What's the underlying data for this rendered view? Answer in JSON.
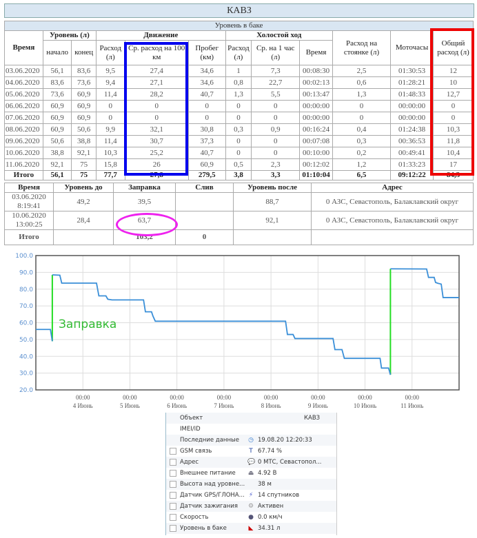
{
  "title": "КАВЗ",
  "table1": {
    "caption": "Уровень в баке",
    "headers": {
      "time": "Время",
      "level": "Уровень (л)",
      "start": "начало",
      "end": "конец",
      "movement": "Движение",
      "mv_cons": "Расход (л)",
      "mv_avg": "Ср. расход на 100 км",
      "mileage": "Пробег (км)",
      "idle": "Холостой ход",
      "idle_cons": "Расход (л)",
      "idle_avg": "Ср. на 1 час (л)",
      "idle_time": "Время",
      "parking": "Расход на стоянке (л)",
      "engine_hours": "Моточасы",
      "total": "Общий расход (л)"
    },
    "rows": [
      [
        "03.06.2020",
        "56,1",
        "83,6",
        "9,5",
        "27,4",
        "34,6",
        "1",
        "7,3",
        "00:08:30",
        "2,5",
        "01:30:53",
        "12"
      ],
      [
        "04.06.2020",
        "83,6",
        "73,6",
        "9,4",
        "27,1",
        "34,6",
        "0,8",
        "22,7",
        "00:02:13",
        "0,6",
        "01:28:21",
        "10"
      ],
      [
        "05.06.2020",
        "73,6",
        "60,9",
        "11,4",
        "28,2",
        "40,7",
        "1,3",
        "5,5",
        "00:13:47",
        "1,3",
        "01:48:33",
        "12,7"
      ],
      [
        "06.06.2020",
        "60,9",
        "60,9",
        "0",
        "0",
        "0",
        "0",
        "0",
        "00:00:00",
        "0",
        "00:00:00",
        "0"
      ],
      [
        "07.06.2020",
        "60,9",
        "60,9",
        "0",
        "0",
        "0",
        "0",
        "0",
        "00:00:00",
        "0",
        "00:00:00",
        "0"
      ],
      [
        "08.06.2020",
        "60,9",
        "50,6",
        "9,9",
        "32,1",
        "30,8",
        "0,3",
        "0,9",
        "00:16:24",
        "0,4",
        "01:24:38",
        "10,3"
      ],
      [
        "09.06.2020",
        "50,6",
        "38,8",
        "11,4",
        "30,7",
        "37,3",
        "0",
        "0",
        "00:07:08",
        "0,3",
        "00:36:53",
        "11,8"
      ],
      [
        "10.06.2020",
        "38,8",
        "92,1",
        "10,3",
        "25,2",
        "40,7",
        "0",
        "0",
        "00:10:00",
        "0,2",
        "00:49:41",
        "10,4"
      ],
      [
        "11.06.2020",
        "92,1",
        "75",
        "15,8",
        "26",
        "60,9",
        "0,5",
        "2,3",
        "00:12:02",
        "1,2",
        "01:33:23",
        "17"
      ]
    ],
    "total": [
      "Итого",
      "56,1",
      "75",
      "77,7",
      "27,8",
      "279,5",
      "3,8",
      "3,3",
      "01:10:04",
      "6,5",
      "09:12:22",
      "84,3"
    ]
  },
  "table2": {
    "headers": [
      "Время",
      "Уровень до",
      "Заправка",
      "Слив",
      "Уровень после",
      "Адрес"
    ],
    "rows": [
      {
        "date": "03.06.2020",
        "time": "8:19:41",
        "before": "49,2",
        "refuel": "39,5",
        "drain": "",
        "after": "88,7",
        "address": "0 АЗС, Севастополь, Балаклавский округ"
      },
      {
        "date": "10.06.2020",
        "time": "13:00:25",
        "before": "28,4",
        "refuel": "63,7",
        "drain": "",
        "after": "92,1",
        "address": "0 АЗС, Севастополь, Балаклавский округ"
      }
    ],
    "total": {
      "label": "Итого",
      "refuel": "103,2",
      "drain": "0"
    }
  },
  "highlight_colors": {
    "avg_column": "#0000ee",
    "total_column": "#ee0000",
    "refuel_circle": "#ee22ee"
  },
  "chart_data": {
    "type": "line",
    "ylim": [
      20,
      100
    ],
    "yticks": [
      "20.0",
      "30.0",
      "40.0",
      "50.0",
      "60.0",
      "70.0",
      "80.0",
      "90.0",
      "100.0"
    ],
    "xlim": [
      3.0,
      12.0
    ],
    "xticks": [
      {
        "t": "00:00",
        "d": "4 Июнь",
        "x": 4
      },
      {
        "t": "00:00",
        "d": "5 Июнь",
        "x": 5
      },
      {
        "t": "00:00",
        "d": "6 Июнь",
        "x": 6
      },
      {
        "t": "00:00",
        "d": "7 Июнь",
        "x": 7
      },
      {
        "t": "00:00",
        "d": "8 Июнь",
        "x": 8
      },
      {
        "t": "00:00",
        "d": "9 Июнь",
        "x": 9
      },
      {
        "t": "00:00",
        "d": "10 Июнь",
        "x": 10
      },
      {
        "t": "00:00",
        "d": "11 Июнь",
        "x": 11
      }
    ],
    "grid": true,
    "series_color": "#3a8fd8",
    "refuel_color": "#22dd22",
    "annotation": "Заправка",
    "segments": [
      [
        [
          3.0,
          56
        ],
        [
          3.31,
          56
        ],
        [
          3.35,
          49
        ]
      ],
      [
        [
          3.35,
          88.5
        ],
        [
          3.51,
          88.3
        ],
        [
          3.53,
          86
        ],
        [
          3.55,
          83.6
        ],
        [
          4.29,
          83.6
        ],
        [
          4.34,
          76
        ],
        [
          4.49,
          76
        ],
        [
          4.53,
          74
        ],
        [
          4.62,
          73.6
        ],
        [
          5.29,
          73.6
        ],
        [
          5.33,
          66.5
        ],
        [
          5.46,
          66.5
        ],
        [
          5.49,
          64
        ],
        [
          5.54,
          60.9
        ],
        [
          8.31,
          60.9
        ],
        [
          8.35,
          53
        ],
        [
          8.47,
          53
        ],
        [
          8.51,
          50.6
        ],
        [
          9.32,
          50.6
        ],
        [
          9.36,
          44
        ],
        [
          9.51,
          44
        ],
        [
          9.56,
          38.8
        ],
        [
          10.32,
          38.8
        ],
        [
          10.35,
          33
        ],
        [
          10.5,
          33
        ],
        [
          10.54,
          29
        ]
      ],
      [
        [
          10.54,
          92.1
        ],
        [
          11.31,
          92
        ],
        [
          11.35,
          87
        ],
        [
          11.47,
          87
        ],
        [
          11.5,
          84
        ],
        [
          11.55,
          83.5
        ],
        [
          11.62,
          83
        ],
        [
          11.66,
          75
        ],
        [
          12.0,
          75
        ]
      ]
    ],
    "refuels": [
      {
        "x": 3.35,
        "from": 49,
        "to": 88.5
      },
      {
        "x": 10.54,
        "from": 29,
        "to": 92.1
      }
    ]
  },
  "info": {
    "rows": [
      {
        "label": "Объект",
        "value": "КАВЗ",
        "icon": ""
      },
      {
        "label": "IMEI/ID",
        "value": "",
        "icon": ""
      },
      {
        "label": "Последние данные",
        "value": "19.08.20 12:20:33",
        "icon": "clock-icon"
      },
      {
        "label": "GSM связь",
        "value": "67.74 %",
        "icon": "antenna-icon"
      },
      {
        "label": "Адрес",
        "value": "0 МТС, Севастопол...",
        "icon": "speech-bubble-icon"
      },
      {
        "label": "Внешнее питание",
        "value": "4.92 В",
        "icon": "power-icon"
      },
      {
        "label": "Высота над уровне...",
        "value": "38 м",
        "icon": ""
      },
      {
        "label": "Датчик GPS/ГЛОНА...",
        "value": "14 спутников",
        "icon": "satellite-icon"
      },
      {
        "label": "Датчик зажигания",
        "value": "Активен",
        "icon": "ignition-icon"
      },
      {
        "label": "Скорость",
        "value": "0.0 км/ч",
        "icon": "speedometer-icon"
      },
      {
        "label": "Уровень в баке",
        "value": "34.31 л",
        "icon": "fuel-gauge-icon"
      }
    ]
  }
}
